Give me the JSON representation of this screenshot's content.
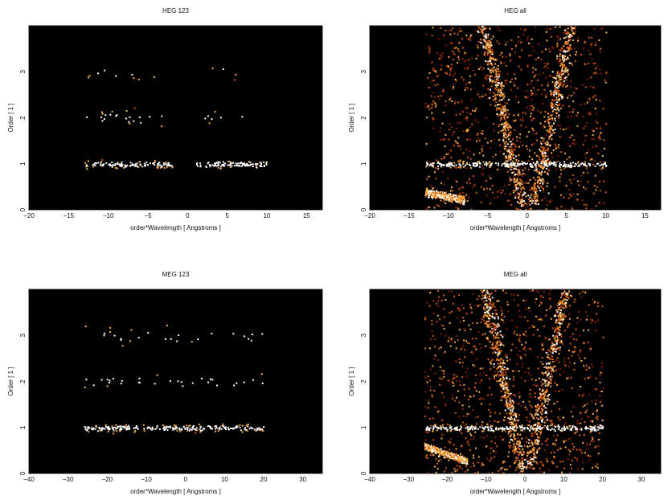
{
  "chart_data": [
    {
      "type": "heatmap",
      "title": "HEG 123",
      "xlabel": "order*Wavelength [ Angstroms ]",
      "ylabel": "Order [ 1 ]",
      "xlim": [
        -20,
        17
      ],
      "ylim": [
        0,
        4
      ],
      "xticks": [
        -20,
        -15,
        -10,
        -5,
        0,
        5,
        10,
        15
      ],
      "yticks": [
        0,
        1,
        2,
        3
      ],
      "background": "#000000",
      "colormap": [
        "#3a0800",
        "#8a1f00",
        "#d45a10",
        "#f7b04a",
        "#ffffff"
      ],
      "features": [
        {
          "kind": "band",
          "order": 1,
          "x_range": [
            -13,
            -2
          ],
          "spread": 0.035,
          "density": 0.9,
          "intensity": 0.9
        },
        {
          "kind": "band",
          "order": 1,
          "x_range": [
            1,
            10
          ],
          "spread": 0.035,
          "density": 0.9,
          "intensity": 0.9
        },
        {
          "kind": "band",
          "order": 2,
          "x_range": [
            -13,
            -2
          ],
          "spread": 0.08,
          "density": 0.18,
          "intensity": 0.85
        },
        {
          "kind": "band",
          "order": 2,
          "x_range": [
            2,
            7
          ],
          "spread": 0.06,
          "density": 0.12,
          "intensity": 0.85
        },
        {
          "kind": "band",
          "order": 3,
          "x_range": [
            -13,
            -4
          ],
          "spread": 0.08,
          "density": 0.08,
          "intensity": 0.85
        },
        {
          "kind": "band",
          "order": 3,
          "x_range": [
            3,
            9
          ],
          "spread": 0.06,
          "density": 0.06,
          "intensity": 0.85
        }
      ]
    },
    {
      "type": "heatmap",
      "title": "HEG all",
      "xlabel": "order*Wavelength [ Angstroms ]",
      "ylabel": "Order [ 1 ]",
      "xlim": [
        -20,
        17
      ],
      "ylim": [
        0,
        4
      ],
      "xticks": [
        -20,
        -15,
        -10,
        -5,
        0,
        5,
        10,
        15
      ],
      "yticks": [
        0,
        1,
        2,
        3
      ],
      "background": "#000000",
      "colormap": [
        "#3a0800",
        "#8a1f00",
        "#d45a10",
        "#f7b04a",
        "#ffffff"
      ],
      "features": [
        {
          "kind": "region",
          "x_range": [
            -13,
            10
          ],
          "density": 0.55,
          "intensity": 0.45
        },
        {
          "kind": "wedge",
          "center": 0,
          "slope": 3.5,
          "width": 1.2,
          "intensity": 0.7
        },
        {
          "kind": "band",
          "order": 1,
          "x_range": [
            -13,
            10
          ],
          "spread": 0.035,
          "density": 0.9,
          "intensity": 0.9
        },
        {
          "kind": "curve",
          "x_range": [
            -13,
            -8
          ],
          "y_start": 0.4,
          "y_end": 0.22,
          "intensity": 0.85
        }
      ]
    },
    {
      "type": "heatmap",
      "title": "MEG 123",
      "xlabel": "order*Wavelength [ Angstroms ]",
      "ylabel": "Order [ 1 ]",
      "xlim": [
        -40,
        35
      ],
      "ylim": [
        0,
        4
      ],
      "xticks": [
        -40,
        -30,
        -20,
        -10,
        0,
        10,
        20,
        30
      ],
      "yticks": [
        0,
        1,
        2,
        3
      ],
      "background": "#000000",
      "colormap": [
        "#3a0800",
        "#8a1f00",
        "#d45a10",
        "#f7b04a",
        "#ffffff"
      ],
      "features": [
        {
          "kind": "band",
          "order": 1,
          "x_range": [
            -26,
            20
          ],
          "spread": 0.035,
          "density": 0.9,
          "intensity": 0.9
        },
        {
          "kind": "band",
          "order": 2,
          "x_range": [
            -26,
            20
          ],
          "spread": 0.1,
          "density": 0.12,
          "intensity": 0.85
        },
        {
          "kind": "band",
          "order": 3,
          "x_range": [
            -26,
            20
          ],
          "spread": 0.1,
          "density": 0.1,
          "intensity": 0.85
        }
      ]
    },
    {
      "type": "heatmap",
      "title": "MEG all",
      "xlabel": "order*Wavelength [ Angstroms ]",
      "ylabel": "Order [ 1 ]",
      "xlim": [
        -40,
        35
      ],
      "ylim": [
        0,
        4
      ],
      "xticks": [
        -40,
        -30,
        -20,
        -10,
        0,
        10,
        20,
        30
      ],
      "yticks": [
        0,
        1,
        2,
        3
      ],
      "background": "#000000",
      "colormap": [
        "#3a0800",
        "#8a1f00",
        "#d45a10",
        "#f7b04a",
        "#ffffff"
      ],
      "features": [
        {
          "kind": "region",
          "x_range": [
            -26,
            20
          ],
          "density": 0.55,
          "intensity": 0.45
        },
        {
          "kind": "wedge",
          "center": 0,
          "slope": 7,
          "width": 2.5,
          "intensity": 0.7
        },
        {
          "kind": "band",
          "order": 1,
          "x_range": [
            -26,
            20
          ],
          "spread": 0.035,
          "density": 0.9,
          "intensity": 0.9
        },
        {
          "kind": "curve",
          "x_range": [
            -26,
            -15
          ],
          "y_start": 0.6,
          "y_end": 0.28,
          "intensity": 0.85
        }
      ]
    }
  ]
}
